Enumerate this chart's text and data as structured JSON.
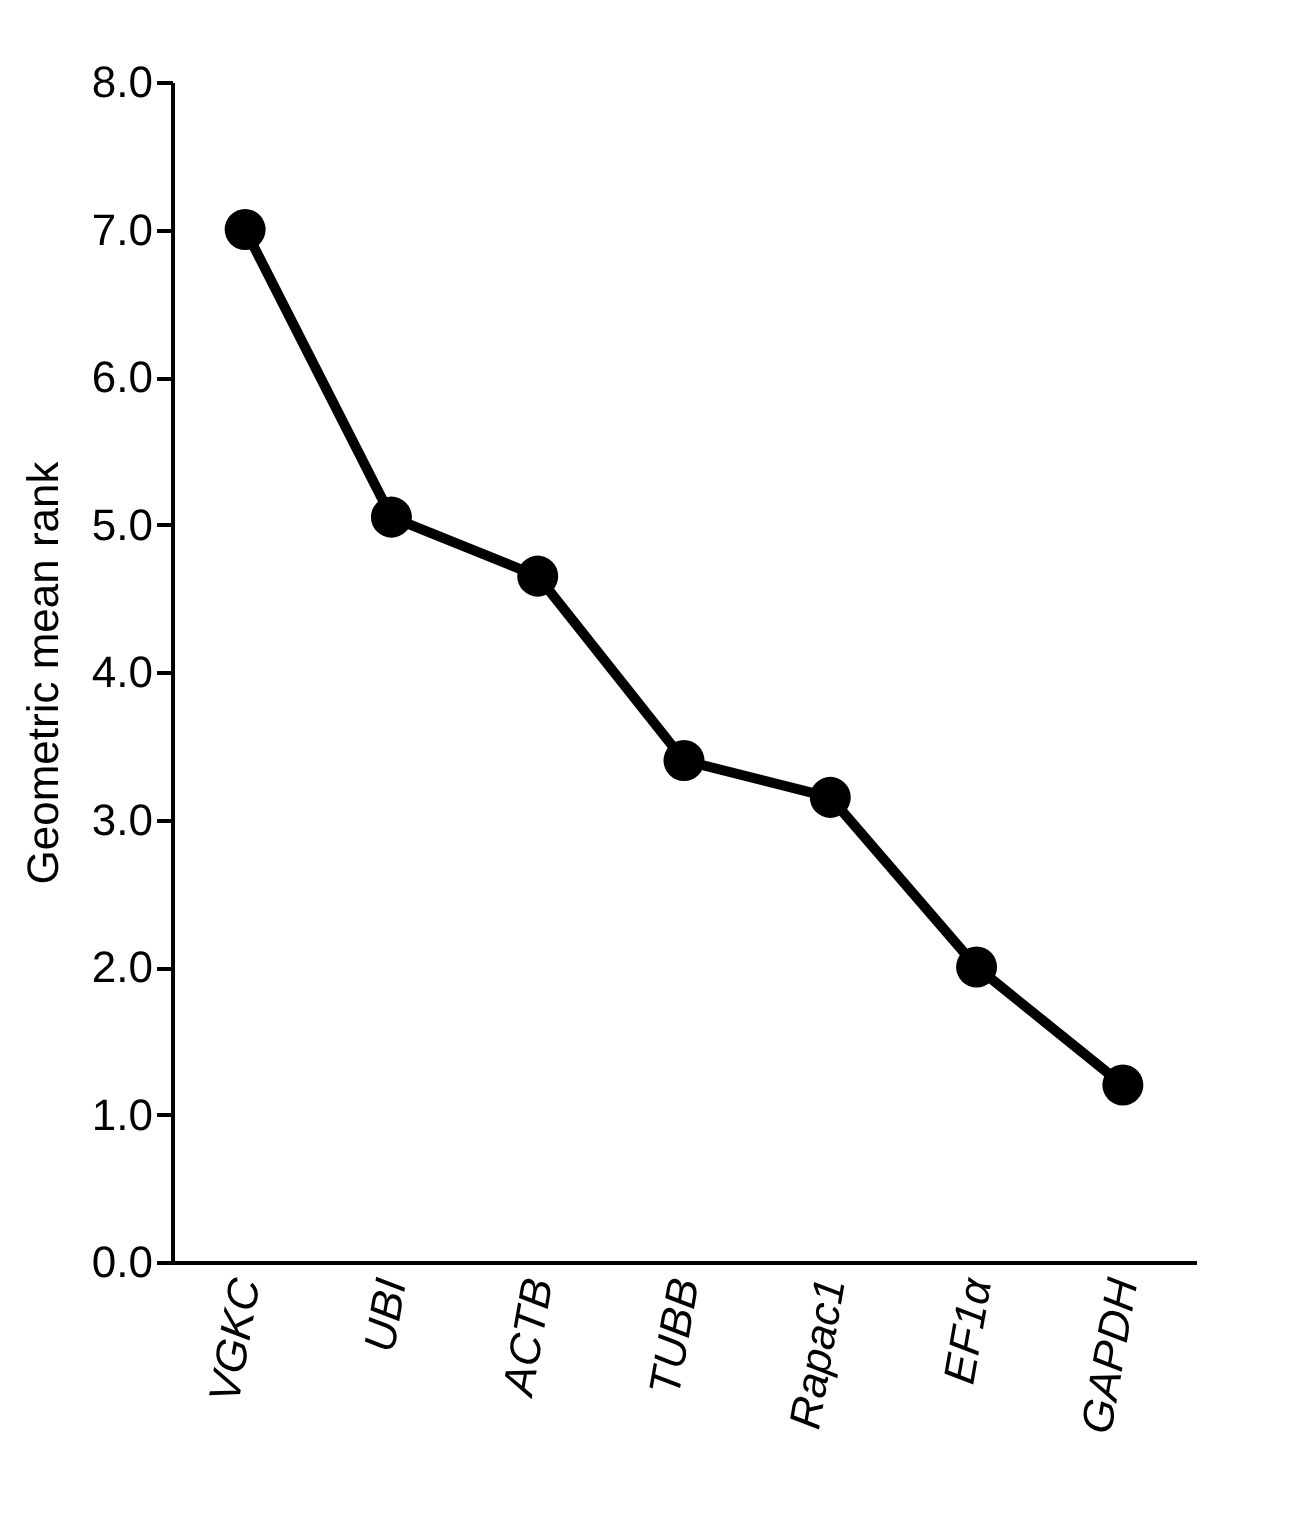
{
  "chart_data": {
    "type": "line",
    "ylabel": "Geometric mean rank",
    "categories": [
      "VGKC",
      "UBI",
      "ACTB",
      "TUBB",
      "Rapac1",
      "EF1α",
      "GAPDH"
    ],
    "series": [
      {
        "color": "#000000",
        "values": [
          7.0,
          5.05,
          4.65,
          3.4,
          3.15,
          2.0,
          1.2
        ]
      }
    ],
    "ylim": [
      0,
      8
    ],
    "yticks": [
      {
        "value": 0,
        "label": "0.0"
      },
      {
        "value": 1,
        "label": "1.0"
      },
      {
        "value": 2,
        "label": "2.0"
      },
      {
        "value": 3,
        "label": "3.0"
      },
      {
        "value": 4,
        "label": "4.0"
      },
      {
        "value": 5,
        "label": "5.0"
      },
      {
        "value": 6,
        "label": "6.0"
      },
      {
        "value": 7,
        "label": "7.0"
      },
      {
        "value": 8,
        "label": "8.0"
      }
    ],
    "marker": "circle",
    "line_style": "solid",
    "grid": false
  }
}
